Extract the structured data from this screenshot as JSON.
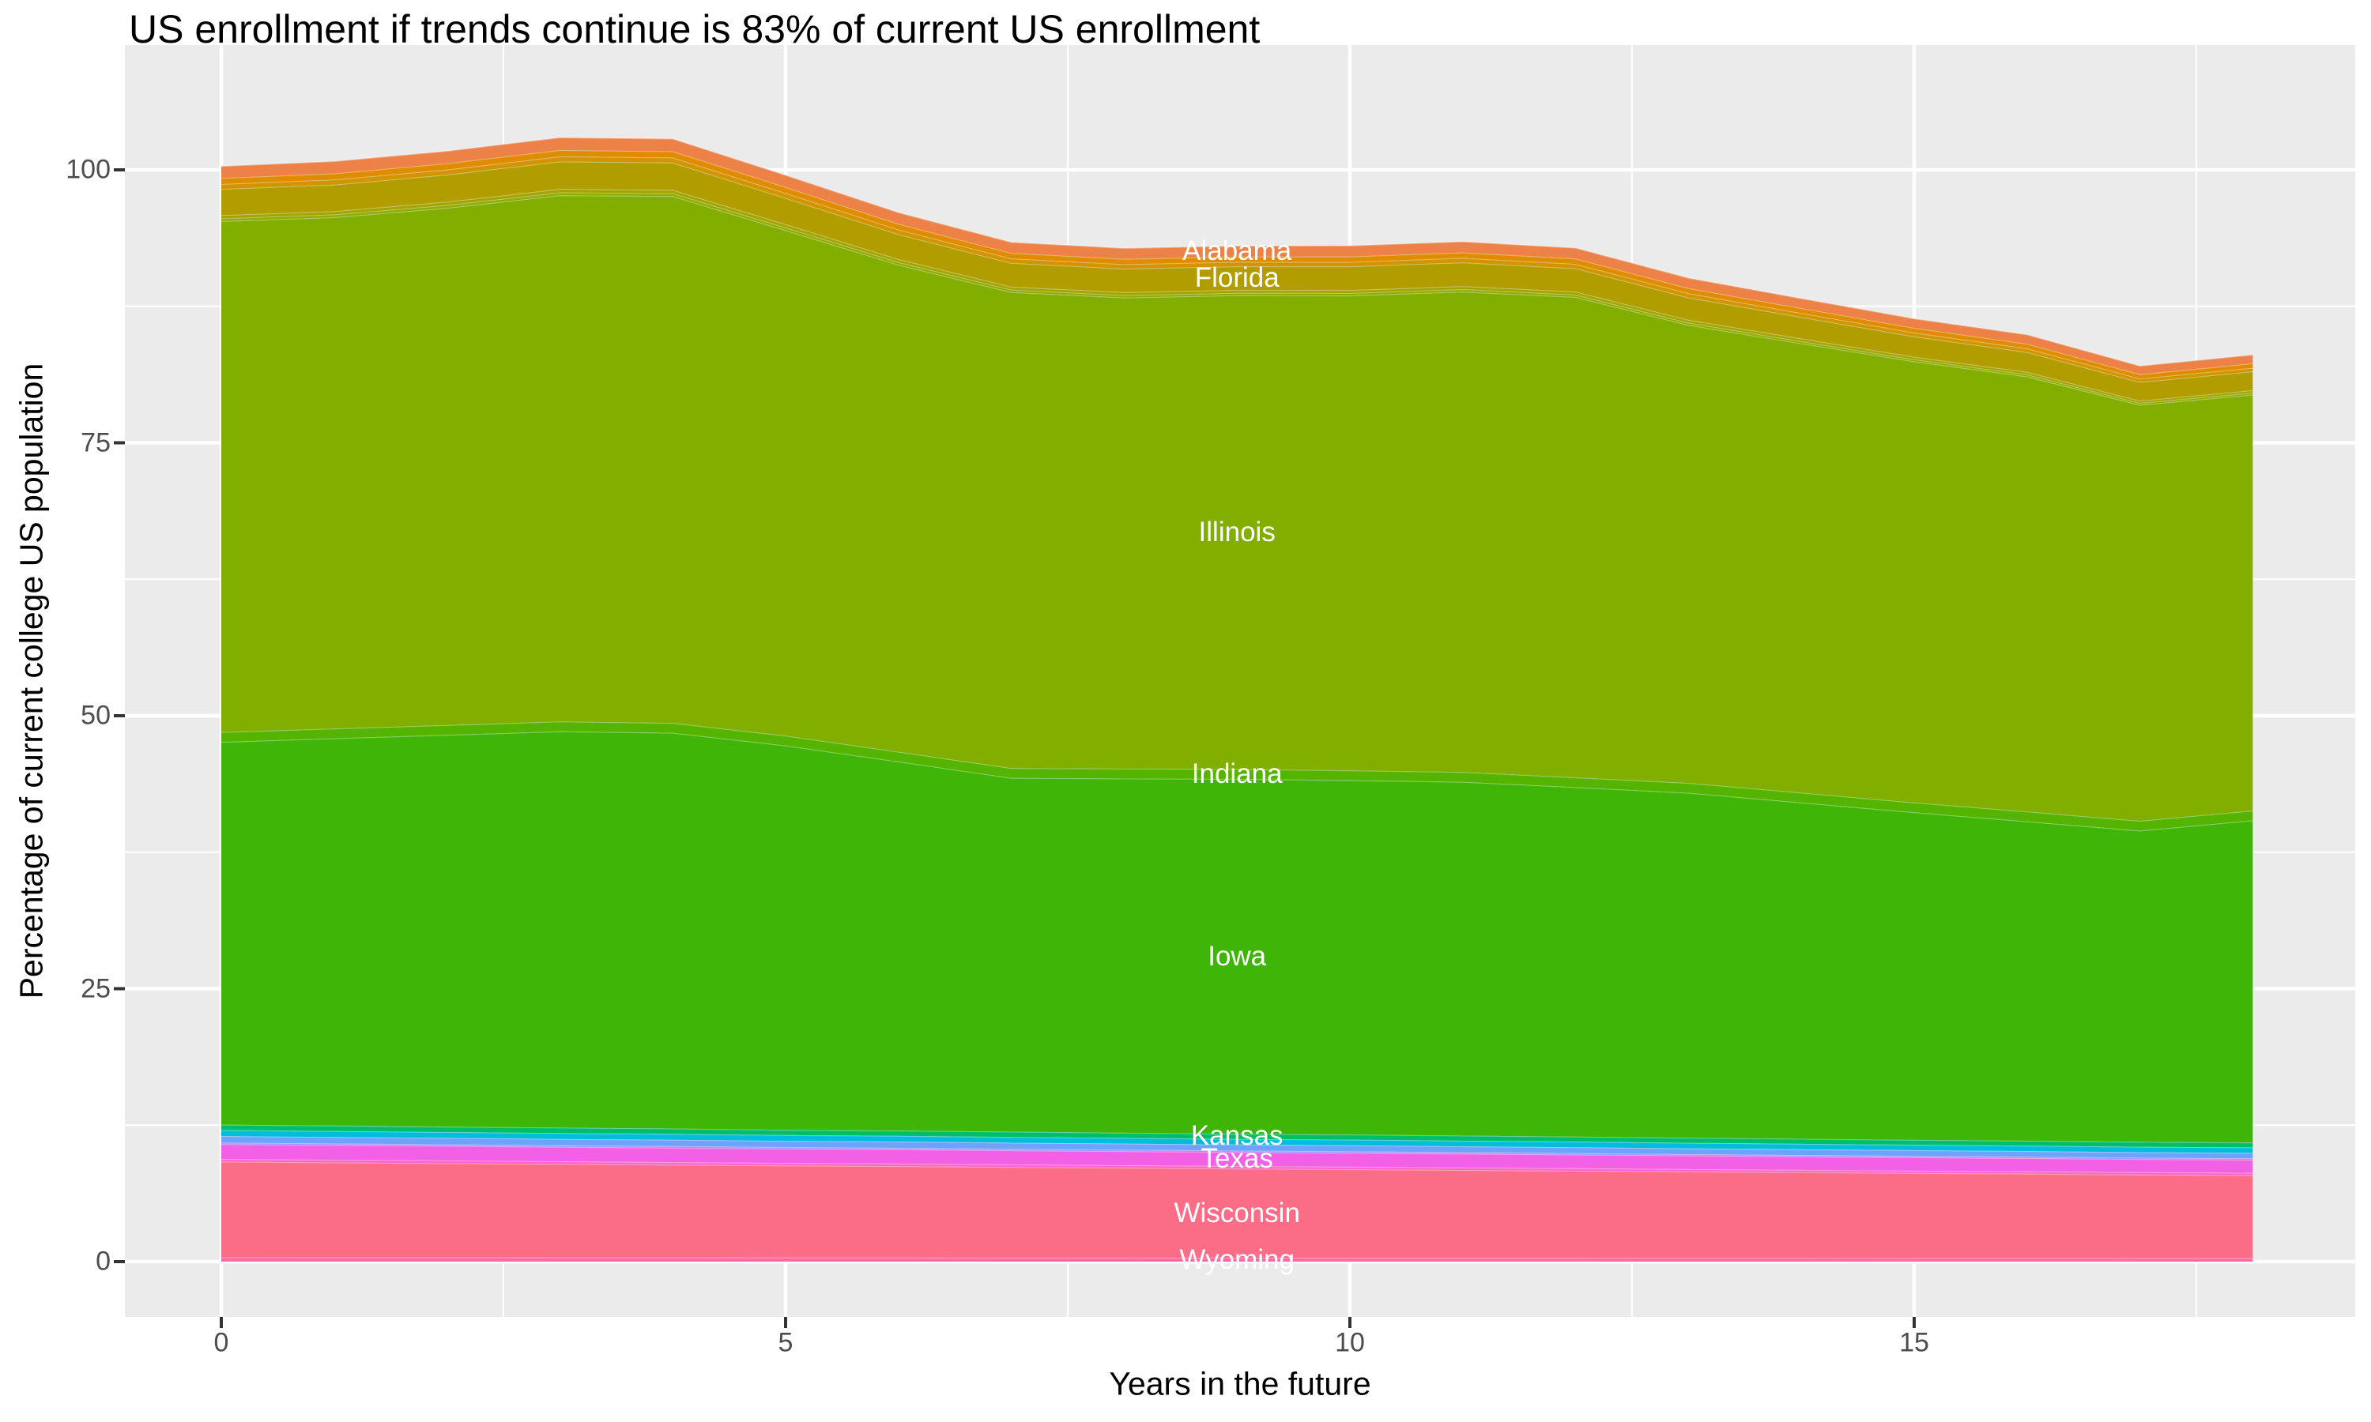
{
  "chart_data": {
    "type": "area",
    "stacked": true,
    "title": "US enrollment if trends continue is 83% of current US enrollment",
    "xlabel": "Years in the future",
    "ylabel": "Percentage of current college US population",
    "x": [
      0,
      1,
      2,
      3,
      4,
      5,
      6,
      7,
      8,
      9,
      10,
      11,
      12,
      13,
      14,
      15,
      16,
      17,
      18
    ],
    "x_ticks": [
      0,
      5,
      10,
      15
    ],
    "y_ticks": [
      0,
      25,
      50,
      75,
      100
    ],
    "xlim": [
      -0.85,
      18.9
    ],
    "ylim": [
      -5.2,
      111.4
    ],
    "grid": "on",
    "legend": "none",
    "label_x": 9,
    "panel_bg": "#EBEBEB",
    "grid_color": "#FFFFFF",
    "tick_text_color": "#4D4D4D",
    "tick_mark_color": "#333333",
    "title_color": "#000000",
    "area_label_color": "#FFFFFF",
    "series": [
      {
        "name": "Alabama",
        "label_shown": true,
        "color": "#EC8248",
        "values": [
          1.1,
          1.12,
          1.14,
          1.16,
          1.15,
          1.1,
          1.05,
          1.0,
          0.99,
          0.99,
          1.0,
          1.0,
          0.98,
          0.94,
          0.9,
          0.86,
          0.84,
          0.78,
          0.8
        ]
      },
      {
        "name": "unlabeled-band-2",
        "label_shown": false,
        "color": "#E08C00",
        "values": [
          0.55,
          0.56,
          0.57,
          0.58,
          0.57,
          0.55,
          0.52,
          0.5,
          0.49,
          0.49,
          0.5,
          0.5,
          0.49,
          0.47,
          0.45,
          0.43,
          0.42,
          0.39,
          0.4
        ]
      },
      {
        "name": "unlabeled-band-3",
        "label_shown": false,
        "color": "#D29400",
        "values": [
          0.45,
          0.46,
          0.46,
          0.47,
          0.47,
          0.45,
          0.43,
          0.41,
          0.4,
          0.4,
          0.41,
          0.41,
          0.4,
          0.38,
          0.37,
          0.35,
          0.34,
          0.32,
          0.33
        ]
      },
      {
        "name": "Florida",
        "label_shown": true,
        "color": "#B29D00",
        "values": [
          2.4,
          2.44,
          2.48,
          2.52,
          2.5,
          2.4,
          2.28,
          2.18,
          2.16,
          2.16,
          2.17,
          2.18,
          2.14,
          2.05,
          1.96,
          1.87,
          1.82,
          1.7,
          1.73
        ]
      },
      {
        "name": "unlabeled-band-5",
        "label_shown": false,
        "color": "#A3A400",
        "values": [
          0.3,
          0.3,
          0.31,
          0.31,
          0.31,
          0.3,
          0.28,
          0.27,
          0.27,
          0.27,
          0.27,
          0.27,
          0.27,
          0.26,
          0.25,
          0.23,
          0.23,
          0.21,
          0.22
        ]
      },
      {
        "name": "unlabeled-band-6",
        "label_shown": false,
        "color": "#91AB00",
        "values": [
          0.25,
          0.25,
          0.26,
          0.26,
          0.26,
          0.25,
          0.24,
          0.22,
          0.22,
          0.22,
          0.22,
          0.23,
          0.22,
          0.21,
          0.2,
          0.19,
          0.19,
          0.18,
          0.18
        ]
      },
      {
        "name": "Illinois",
        "label_shown": true,
        "color": "#82AE00",
        "values": [
          46.8,
          46.83,
          47.37,
          48.2,
          48.25,
          46.3,
          44.6,
          43.6,
          43.15,
          43.4,
          43.5,
          44.0,
          44.0,
          41.95,
          41.15,
          40.4,
          39.85,
          38.1,
          38.1
        ]
      },
      {
        "name": "Indiana",
        "label_shown": true,
        "color": "#55B400",
        "values": [
          0.9,
          0.9,
          0.9,
          0.9,
          0.9,
          0.9,
          0.9,
          0.9,
          0.9,
          0.9,
          0.9,
          0.9,
          0.9,
          0.9,
          0.9,
          0.9,
          0.9,
          0.9,
          0.9
        ]
      },
      {
        "name": "Iowa",
        "label_shown": true,
        "color": "#3FB607",
        "values": [
          35.05,
          35.47,
          35.88,
          36.3,
          36.25,
          35.2,
          33.8,
          32.4,
          32.45,
          32.5,
          32.45,
          32.4,
          32.0,
          31.6,
          30.8,
          30.0,
          29.25,
          28.5,
          29.5
        ]
      },
      {
        "name": "Kansas",
        "label_shown": true,
        "color": "#00BD68",
        "values": [
          0.5,
          0.5,
          0.49,
          0.49,
          0.49,
          0.48,
          0.48,
          0.48,
          0.47,
          0.47,
          0.47,
          0.47,
          0.46,
          0.46,
          0.46,
          0.45,
          0.45,
          0.45,
          0.45
        ]
      },
      {
        "name": "unlabeled-band-11",
        "label_shown": false,
        "color": "#00BEDB",
        "values": [
          0.55,
          0.55,
          0.54,
          0.54,
          0.54,
          0.53,
          0.53,
          0.53,
          0.52,
          0.52,
          0.52,
          0.51,
          0.51,
          0.51,
          0.5,
          0.5,
          0.5,
          0.5,
          0.5
        ]
      },
      {
        "name": "unlabeled-band-12",
        "label_shown": false,
        "color": "#6EA2FF",
        "values": [
          0.6,
          0.59,
          0.59,
          0.58,
          0.58,
          0.57,
          0.57,
          0.56,
          0.56,
          0.55,
          0.55,
          0.54,
          0.54,
          0.53,
          0.53,
          0.52,
          0.51,
          0.5,
          0.5
        ]
      },
      {
        "name": "unlabeled-band-13",
        "label_shown": false,
        "color": "#9B92FF",
        "values": [
          0.15,
          0.15,
          0.15,
          0.15,
          0.15,
          0.14,
          0.14,
          0.14,
          0.14,
          0.14,
          0.14,
          0.14,
          0.14,
          0.13,
          0.13,
          0.13,
          0.13,
          0.13,
          0.13
        ]
      },
      {
        "name": "Texas",
        "label_shown": true,
        "color": "#F160E5",
        "values": [
          1.35,
          1.34,
          1.33,
          1.33,
          1.32,
          1.31,
          1.3,
          1.29,
          1.28,
          1.28,
          1.27,
          1.26,
          1.25,
          1.24,
          1.23,
          1.22,
          1.21,
          1.2,
          1.2
        ]
      },
      {
        "name": "unlabeled-band-15",
        "label_shown": false,
        "color": "#FD64CE",
        "values": [
          0.25,
          0.25,
          0.25,
          0.24,
          0.24,
          0.24,
          0.24,
          0.24,
          0.23,
          0.23,
          0.23,
          0.23,
          0.23,
          0.22,
          0.22,
          0.22,
          0.22,
          0.22,
          0.22
        ]
      },
      {
        "name": "Wisconsin",
        "label_shown": true,
        "color": "#FB6C87",
        "values": [
          8.75,
          8.69,
          8.62,
          8.56,
          8.49,
          8.43,
          8.37,
          8.3,
          8.24,
          8.17,
          8.11,
          8.05,
          7.98,
          7.92,
          7.85,
          7.79,
          7.73,
          7.66,
          7.6
        ]
      },
      {
        "name": "Wyoming",
        "label_shown": true,
        "color": "#FF68A1",
        "values": [
          0.4,
          0.39,
          0.39,
          0.38,
          0.38,
          0.37,
          0.37,
          0.36,
          0.36,
          0.35,
          0.35,
          0.34,
          0.34,
          0.33,
          0.33,
          0.32,
          0.32,
          0.31,
          0.31
        ]
      }
    ]
  }
}
